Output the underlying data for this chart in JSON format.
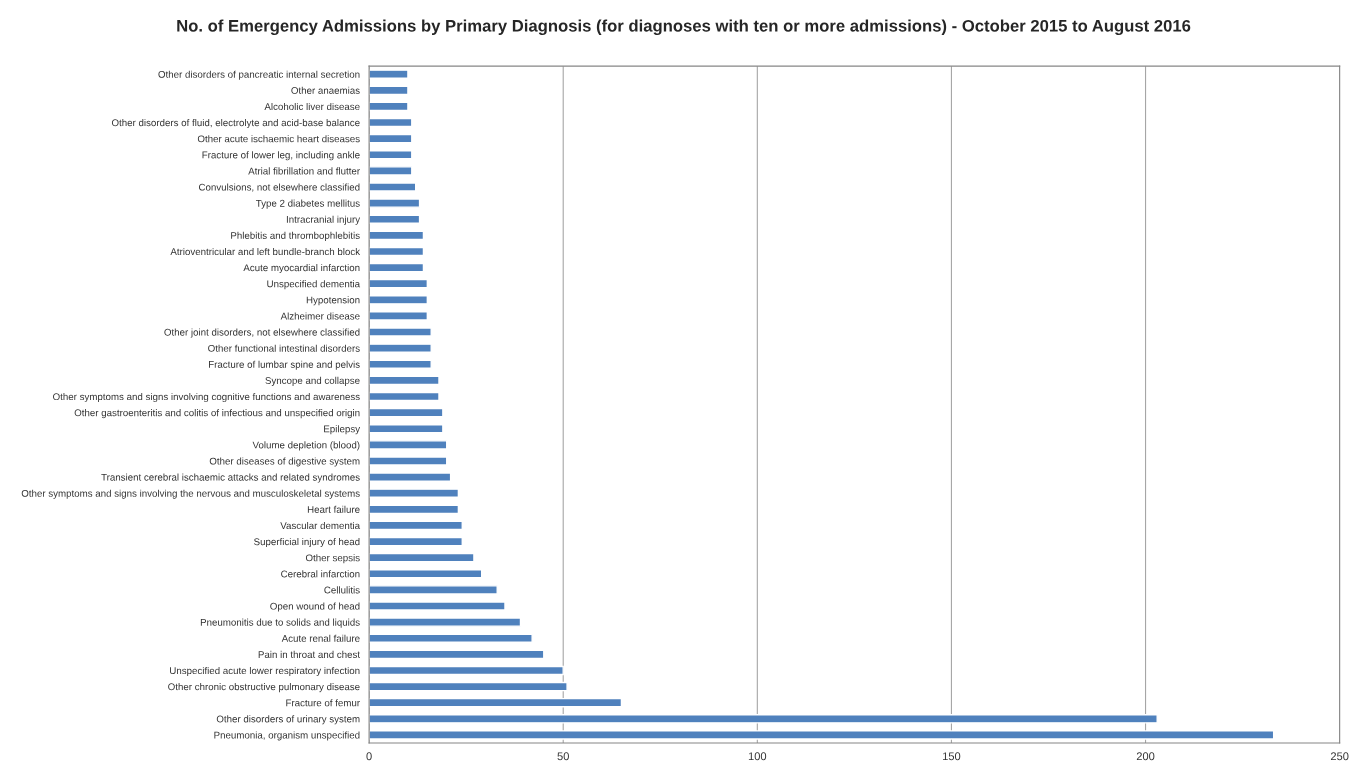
{
  "chart_data": {
    "type": "bar",
    "orientation": "horizontal",
    "title": "No. of Emergency Admissions by Primary Diagnosis (for diagnoses with ten or more admissions) - October 2015 to August 2016",
    "categories": [
      "Other disorders of pancreatic internal secretion",
      "Other anaemias",
      "Alcoholic liver disease",
      "Other disorders of fluid, electrolyte and acid-base balance",
      "Other acute ischaemic heart diseases",
      "Fracture of lower leg, including ankle",
      "Atrial fibrillation and flutter",
      "Convulsions, not elsewhere classified",
      "Type 2 diabetes mellitus",
      "Intracranial injury",
      "Phlebitis and thrombophlebitis",
      "Atrioventricular and left bundle-branch block",
      "Acute myocardial infarction",
      "Unspecified dementia",
      "Hypotension",
      "Alzheimer disease",
      "Other joint disorders, not elsewhere classified",
      "Other functional intestinal disorders",
      "Fracture of lumbar spine and pelvis",
      "Syncope and collapse",
      "Other symptoms and signs involving cognitive functions and awareness",
      "Other gastroenteritis and colitis of infectious and unspecified origin",
      "Epilepsy",
      "Volume depletion (blood)",
      "Other diseases of digestive system",
      "Transient cerebral ischaemic attacks and related syndromes",
      "Other symptoms and signs involving the nervous and musculoskeletal systems",
      "Heart failure",
      "Vascular dementia",
      "Superficial injury of head",
      "Other sepsis",
      "Cerebral infarction",
      "Cellulitis",
      "Open wound of head",
      "Pneumonitis due to solids and liquids",
      "Acute renal failure",
      "Pain in throat and chest",
      "Unspecified acute lower respiratory infection",
      "Other chronic obstructive pulmonary disease",
      "Fracture of femur",
      "Other disorders of urinary system",
      "Pneumonia, organism unspecified"
    ],
    "values": [
      10,
      10,
      10,
      11,
      11,
      11,
      11,
      12,
      13,
      13,
      14,
      14,
      14,
      15,
      15,
      15,
      16,
      16,
      16,
      18,
      18,
      19,
      19,
      20,
      20,
      21,
      23,
      23,
      24,
      24,
      27,
      29,
      33,
      35,
      39,
      42,
      45,
      50,
      51,
      65,
      203,
      233
    ],
    "color": "#4f81bd",
    "xlim": [
      0,
      250
    ],
    "xticks": [
      0,
      50,
      100,
      150,
      200,
      250
    ],
    "grid": "x",
    "legend": false
  }
}
